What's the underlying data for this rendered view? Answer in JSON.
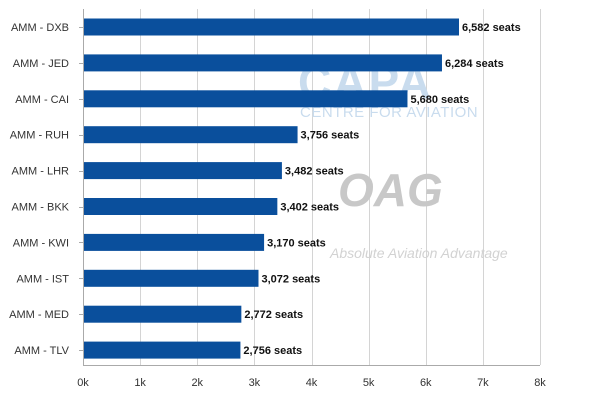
{
  "watermarks": {
    "capa_logo": "CAPA",
    "capa_subtitle": "CENTRE FOR AVIATION",
    "oag_logo": "OAG",
    "oag_subtitle": "Absolute Aviation Advantage"
  },
  "colors": {
    "bar": "#0a4f9c",
    "grid": "#d4d4d4",
    "axis": "#aaaaaa"
  },
  "chart_data": {
    "type": "bar",
    "orientation": "horizontal",
    "title": "",
    "xlabel": "",
    "ylabel": "",
    "categories": [
      "AMM - DXB",
      "AMM - JED",
      "AMM - CAI",
      "AMM - RUH",
      "AMM - LHR",
      "AMM - BKK",
      "AMM - KWI",
      "AMM - IST",
      "AMM - MED",
      "AMM - TLV"
    ],
    "values": [
      6582,
      6284,
      5680,
      3756,
      3482,
      3402,
      3170,
      3072,
      2772,
      2756
    ],
    "data_labels": [
      "6,582 seats",
      "6,284 seats",
      "5,680 seats",
      "3,756 seats",
      "3,482 seats",
      "3,402 seats",
      "3,170 seats",
      "3,072 seats",
      "2,772 seats",
      "2,756 seats"
    ],
    "xlim": [
      0,
      8000
    ],
    "x_ticks": [
      0,
      1000,
      2000,
      3000,
      4000,
      5000,
      6000,
      7000,
      8000
    ],
    "x_tick_labels": [
      "0k",
      "1k",
      "2k",
      "3k",
      "4k",
      "5k",
      "6k",
      "7k",
      "8k"
    ],
    "grid": "vertical",
    "legend": "none"
  }
}
